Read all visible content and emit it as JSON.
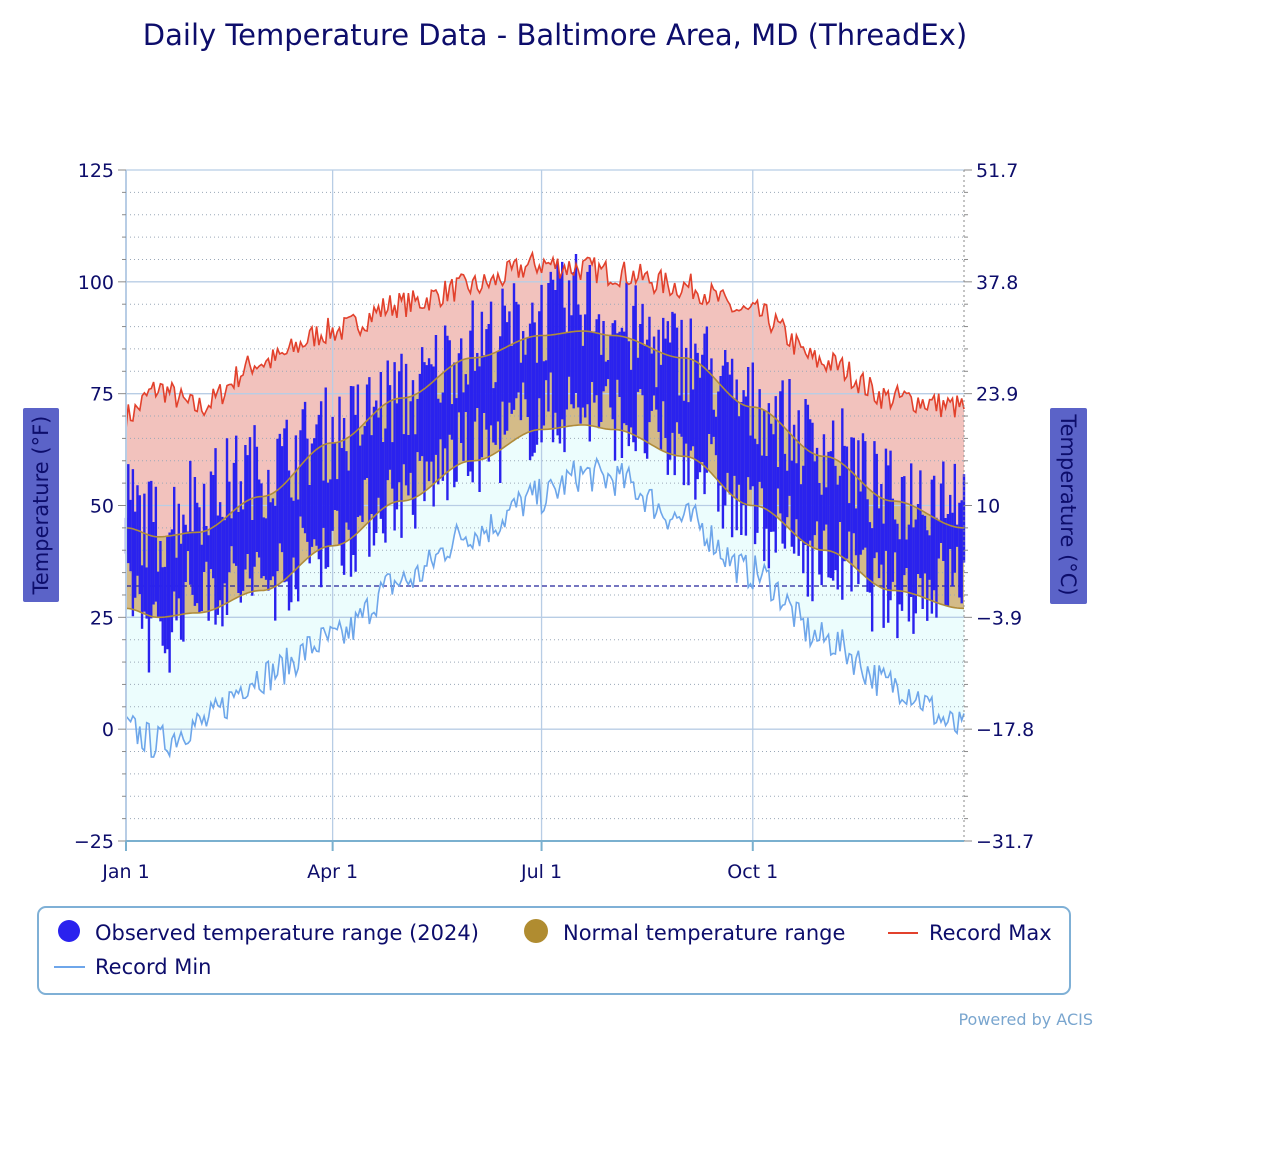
{
  "chart_data": {
    "type": "area",
    "title": "Daily Temperature Data - Baltimore Area, MD (ThreadEx)",
    "ylabel_left": "Temperature (°F)",
    "ylabel_right": "Temperature (°C)",
    "ylim": [
      -25,
      125
    ],
    "y_ticks_left": [
      "125",
      "100",
      "75",
      "50",
      "25",
      "0",
      "−25"
    ],
    "y_ticks_left_values": [
      125,
      100,
      75,
      50,
      25,
      0,
      -25
    ],
    "y_ticks_right": [
      "51.7",
      "37.8",
      "23.9",
      "10",
      "−3.9",
      "−17.8",
      "−31.7"
    ],
    "x_ticks": [
      "Jan 1",
      "Apr 1",
      "Jul 1",
      "Oct 1"
    ],
    "x_tick_days": [
      1,
      91,
      182,
      274
    ],
    "days_in_year": 366,
    "freezing_line_f": 32,
    "grid": true,
    "legend_placement": "bottom",
    "colors": {
      "observed": "#2a22ee",
      "normal_fill": "#d4bb88",
      "normal_edge": "#b08c3b",
      "legend_normal": "#b08c30",
      "record_max_line": "#e2412c",
      "record_max_fill": "#f2c2bd",
      "record_min_line": "#6ea6ea",
      "record_min_fill": "#ecfdfd",
      "grid": "#b8cde5",
      "text": "#0d0d6b",
      "axis_title_bg": "#5b63c8"
    },
    "legend": [
      {
        "label": "Observed temperature range (2024)",
        "symbol": "dot",
        "color": "#2a22ee"
      },
      {
        "label": "Normal temperature range",
        "symbol": "dot",
        "color": "#b08c30"
      },
      {
        "label": "Record Max",
        "symbol": "line",
        "color": "#e2412c"
      },
      {
        "label": "Record Min",
        "symbol": "line",
        "color": "#6ea6ea"
      }
    ],
    "series": [
      {
        "name": "Record Max",
        "x_days": [
          1,
          15,
          32,
          60,
          91,
          121,
          152,
          182,
          200,
          213,
          244,
          274,
          305,
          335,
          366
        ],
        "values": [
          70,
          76,
          72,
          82,
          89,
          95,
          99,
          104,
          103,
          102,
          99,
          93,
          82,
          74,
          72
        ]
      },
      {
        "name": "Record Min",
        "x_days": [
          1,
          15,
          32,
          60,
          91,
          121,
          152,
          182,
          200,
          213,
          244,
          274,
          305,
          335,
          366
        ],
        "values": [
          0,
          -3,
          1,
          12,
          20,
          33,
          44,
          52,
          57,
          56,
          47,
          35,
          20,
          10,
          0
        ]
      },
      {
        "name": "Normal temperature range (high)",
        "x_days": [
          1,
          15,
          32,
          60,
          91,
          121,
          152,
          182,
          200,
          213,
          244,
          274,
          305,
          335,
          366
        ],
        "values": [
          45,
          43,
          44,
          52,
          64,
          74,
          83,
          88,
          89,
          88,
          83,
          72,
          61,
          51,
          45
        ]
      },
      {
        "name": "Normal temperature range (low)",
        "x_days": [
          1,
          15,
          32,
          60,
          91,
          121,
          152,
          182,
          200,
          213,
          244,
          274,
          305,
          335,
          366
        ],
        "values": [
          27,
          25,
          26,
          31,
          41,
          51,
          60,
          67,
          68,
          67,
          61,
          50,
          40,
          31,
          27
        ]
      },
      {
        "name": "Observed temperature range (2024) (high)",
        "x_days": [
          1,
          15,
          32,
          60,
          91,
          121,
          152,
          182,
          200,
          213,
          244,
          274,
          305,
          335,
          366
        ],
        "values": [
          50,
          45,
          52,
          58,
          66,
          74,
          86,
          92,
          96,
          90,
          84,
          72,
          63,
          52,
          55
        ]
      },
      {
        "name": "Observed temperature range (2024) (low)",
        "x_days": [
          1,
          15,
          32,
          60,
          91,
          121,
          152,
          182,
          200,
          213,
          244,
          274,
          305,
          335,
          366
        ],
        "values": [
          33,
          20,
          32,
          33,
          42,
          52,
          62,
          70,
          72,
          70,
          62,
          47,
          38,
          30,
          34
        ]
      }
    ]
  },
  "credit": "Powered by ACIS"
}
